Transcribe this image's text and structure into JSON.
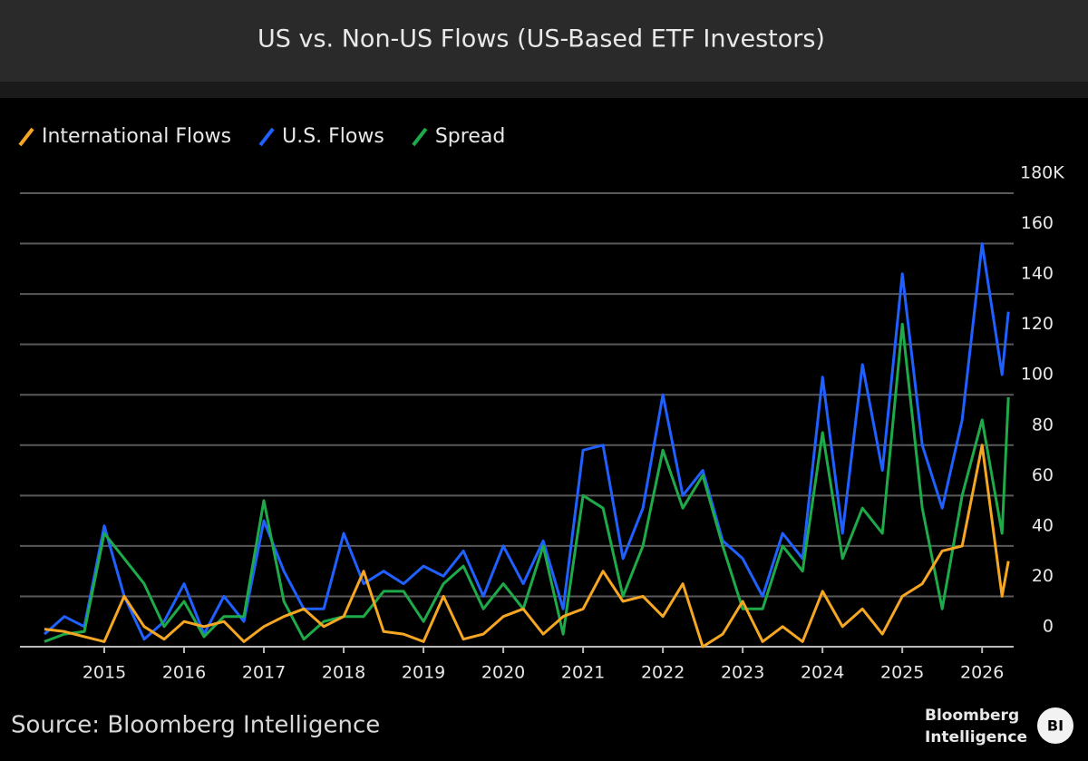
{
  "chart_data": {
    "type": "line",
    "title": "US vs. Non-US Flows (US-Based ETF Investors)",
    "source": "Source: Bloomberg Intelligence",
    "x": [
      2014.25,
      2014.5,
      2014.75,
      2015.0,
      2015.25,
      2015.5,
      2015.75,
      2016.0,
      2016.25,
      2016.5,
      2016.75,
      2017.0,
      2017.25,
      2017.5,
      2017.75,
      2018.0,
      2018.25,
      2018.5,
      2018.75,
      2019.0,
      2019.25,
      2019.5,
      2019.75,
      2020.0,
      2020.25,
      2020.5,
      2020.75,
      2021.0,
      2021.25,
      2021.5,
      2021.75,
      2022.0,
      2022.25,
      2022.5,
      2022.75,
      2023.0,
      2023.25,
      2023.5,
      2023.75,
      2024.0,
      2024.25,
      2024.5,
      2024.75,
      2025.0,
      2025.25,
      2025.5,
      2025.75,
      2026.0,
      2026.25,
      2026.33
    ],
    "series": [
      {
        "name": "International Flows",
        "color": "#f5a623",
        "values": [
          7,
          6,
          4,
          2,
          20,
          8,
          3,
          10,
          8,
          10,
          2,
          8,
          12,
          15,
          8,
          12,
          30,
          6,
          5,
          2,
          20,
          3,
          5,
          12,
          15,
          5,
          12,
          15,
          30,
          18,
          20,
          12,
          25,
          0,
          5,
          18,
          2,
          8,
          2,
          22,
          8,
          15,
          5,
          20,
          25,
          38,
          40,
          80,
          20,
          34
        ]
      },
      {
        "name": "U.S. Flows",
        "color": "#2060ff",
        "values": [
          5,
          12,
          8,
          48,
          20,
          3,
          10,
          25,
          5,
          20,
          10,
          50,
          30,
          15,
          15,
          45,
          25,
          30,
          25,
          32,
          28,
          38,
          20,
          40,
          25,
          42,
          15,
          78,
          80,
          35,
          55,
          100,
          60,
          70,
          42,
          35,
          20,
          45,
          35,
          107,
          45,
          112,
          70,
          148,
          80,
          55,
          90,
          160,
          108,
          133
        ]
      },
      {
        "name": "Spread",
        "color": "#1faa4a",
        "values": [
          2,
          5,
          6,
          45,
          35,
          25,
          8,
          18,
          4,
          12,
          12,
          58,
          18,
          3,
          10,
          12,
          12,
          22,
          22,
          10,
          25,
          32,
          15,
          25,
          15,
          40,
          5,
          60,
          55,
          20,
          40,
          78,
          55,
          68,
          40,
          15,
          15,
          40,
          30,
          85,
          35,
          55,
          45,
          128,
          55,
          15,
          60,
          90,
          45,
          99
        ]
      }
    ],
    "xlim": [
      2014,
      2026.6
    ],
    "xticks": [
      2015,
      2016,
      2017,
      2018,
      2019,
      2020,
      2021,
      2022,
      2023,
      2024,
      2025,
      2026
    ],
    "ylim": [
      0,
      180
    ],
    "yticks": [
      0,
      20,
      40,
      60,
      80,
      100,
      120,
      140,
      160,
      {
        "value": 180,
        "label": "180K"
      }
    ],
    "grid": true,
    "legend": "top-left"
  },
  "branding": {
    "name": "Bloomberg",
    "subname": "Intelligence",
    "badge": "BI"
  }
}
